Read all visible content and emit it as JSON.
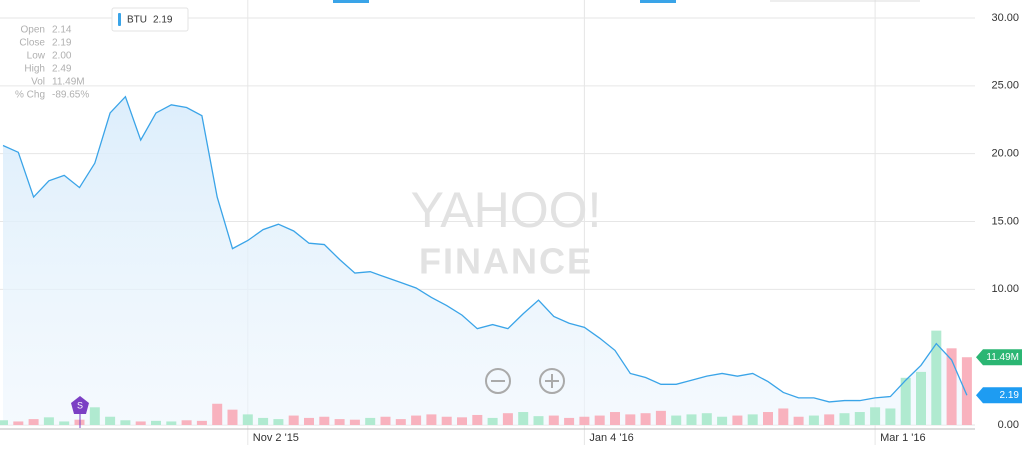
{
  "chart_data": {
    "type": "line",
    "categories": [
      null,
      null,
      null,
      null,
      null,
      null,
      null,
      null,
      null,
      null,
      null,
      null,
      null,
      null,
      null,
      null,
      "Nov 2 '15",
      null,
      null,
      null,
      null,
      null,
      null,
      null,
      null,
      null,
      null,
      null,
      null,
      null,
      null,
      null,
      null,
      null,
      null,
      null,
      null,
      null,
      "Jan 4 '16",
      null,
      null,
      null,
      null,
      null,
      null,
      null,
      null,
      null,
      null,
      null,
      null,
      null,
      null,
      null,
      null,
      null,
      null,
      "Mar 1 '16",
      null,
      null,
      null,
      null,
      null,
      null
    ],
    "series": [
      {
        "name": "BTU",
        "color": "#3aa4e8",
        "values": [
          20.6,
          20.1,
          16.8,
          18.0,
          18.4,
          17.5,
          19.3,
          23.0,
          24.2,
          21.0,
          23.0,
          23.6,
          23.4,
          22.8,
          16.8,
          13.0,
          13.6,
          14.4,
          14.8,
          14.3,
          13.4,
          13.3,
          12.2,
          11.2,
          11.3,
          10.9,
          10.5,
          10.1,
          9.4,
          8.8,
          8.1,
          7.1,
          7.4,
          7.1,
          8.2,
          9.2,
          8.0,
          7.5,
          7.2,
          6.4,
          5.5,
          3.8,
          3.5,
          3.0,
          3.0,
          3.3,
          3.6,
          3.8,
          3.6,
          3.8,
          3.2,
          2.4,
          2.0,
          2.0,
          1.7,
          1.8,
          1.8,
          2.0,
          2.1,
          3.3,
          4.4,
          6.0,
          4.8,
          2.19
        ]
      },
      {
        "type": "bar",
        "axis": "y2",
        "color": "#a9e8cb",
        "down_color": "#f8aab7",
        "values": [
          0.8,
          0.6,
          1.0,
          1.3,
          0.6,
          0.9,
          3.0,
          1.4,
          0.8,
          0.6,
          0.7,
          0.6,
          0.8,
          0.7,
          3.6,
          2.6,
          1.8,
          1.2,
          1.0,
          1.6,
          1.2,
          1.4,
          1.0,
          0.9,
          1.2,
          1.4,
          1.0,
          1.6,
          1.8,
          1.4,
          1.3,
          1.7,
          1.2,
          2.0,
          2.2,
          1.5,
          1.6,
          1.2,
          1.4,
          1.6,
          2.2,
          1.8,
          2.0,
          2.4,
          1.6,
          1.8,
          2.0,
          1.4,
          1.6,
          1.8,
          2.2,
          2.8,
          1.4,
          1.6,
          1.8,
          2.0,
          2.2,
          3.0,
          2.8,
          8.0,
          9.0,
          16.0,
          13.0,
          11.49
        ],
        "value_labels": [
          null,
          null,
          null,
          null,
          null,
          null,
          null,
          null,
          null,
          null,
          null,
          null,
          null,
          null,
          null,
          null,
          null,
          null,
          null,
          null,
          null,
          null,
          null,
          null,
          null,
          null,
          null,
          null,
          null,
          null,
          null,
          null,
          null,
          null,
          null,
          null,
          null,
          null,
          null,
          null,
          null,
          null,
          null,
          null,
          null,
          null,
          null,
          null,
          null,
          null,
          null,
          null,
          null,
          null,
          null,
          null,
          null,
          null,
          null,
          null,
          null,
          null,
          null,
          "11.49M"
        ]
      }
    ],
    "ylim": [
      0,
      30
    ],
    "yticks": [
      {
        "value": 0,
        "label": "0.00"
      },
      {
        "value": 10,
        "label": "10.00"
      },
      {
        "value": 15,
        "label": "15.00"
      },
      {
        "value": 20,
        "label": "20.00"
      },
      {
        "value": 25,
        "label": "25.00"
      },
      {
        "value": 30,
        "label": "30.00"
      }
    ],
    "y2lim": [
      0,
      69
    ],
    "grid": true,
    "info": [
      [
        "Open",
        "2.14"
      ],
      [
        "Close",
        "2.19"
      ],
      [
        "Low",
        "2.00"
      ],
      [
        "High",
        "2.49"
      ],
      [
        "Vol",
        "11.49M"
      ],
      [
        "% Chg",
        "-89.65%"
      ]
    ],
    "event_marker": "S",
    "watermark": [
      "YAHOO!",
      "FINANCE"
    ]
  }
}
